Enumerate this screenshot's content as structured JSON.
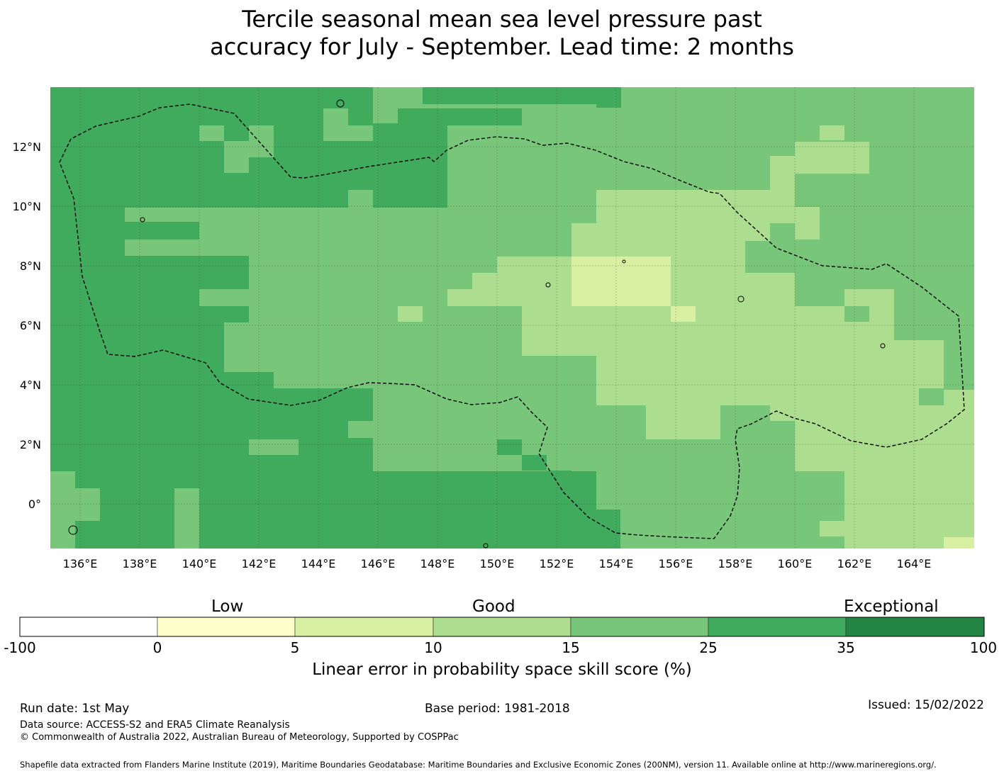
{
  "title": {
    "line1": "Tercile seasonal mean sea level pressure past",
    "line2": "accuracy for July - September. Lead time: 2 months"
  },
  "map": {
    "lat_labels": [
      "12°N",
      "10°N",
      "8°N",
      "6°N",
      "4°N",
      "2°N",
      "0°"
    ],
    "lon_labels": [
      "136°E",
      "138°E",
      "140°E",
      "142°E",
      "144°E",
      "146°E",
      "148°E",
      "150°E",
      "152°E",
      "154°E",
      "156°E",
      "158°E",
      "160°E",
      "162°E",
      "164°E"
    ],
    "eez_boundary": "dashed",
    "dominant_band": "15-25"
  },
  "colorbar": {
    "categories": [
      "Low",
      "Good",
      "Exceptional"
    ],
    "ticks": [
      "-100",
      "0",
      "5",
      "10",
      "15",
      "25",
      "35",
      "100"
    ],
    "colors": [
      "#ffffff",
      "#ffffcc",
      "#d9f0a3",
      "#addd8e",
      "#78c679",
      "#41ab5d",
      "#238443"
    ],
    "title": "Linear error in probability space skill score (%)"
  },
  "footer": {
    "run_date": "Run date: 1st May",
    "base_period": "Base period: 1981-2018",
    "issued": "Issued: 15/02/2022",
    "data_source": "Data source: ACCESS-S2 and ERA5 Climate Reanalysis",
    "copyright": "© Commonwealth of Australia 2022, Australian Bureau of Meteorology, Supported by COSPPac",
    "shapefile": "Shapefile data extracted from Flanders Marine Institute (2019), Maritime Boundaries Geodatabase: Maritime Boundaries and Exclusive Economic Zones (200NM), version 11. Available online at http://www.marineregions.org/."
  }
}
